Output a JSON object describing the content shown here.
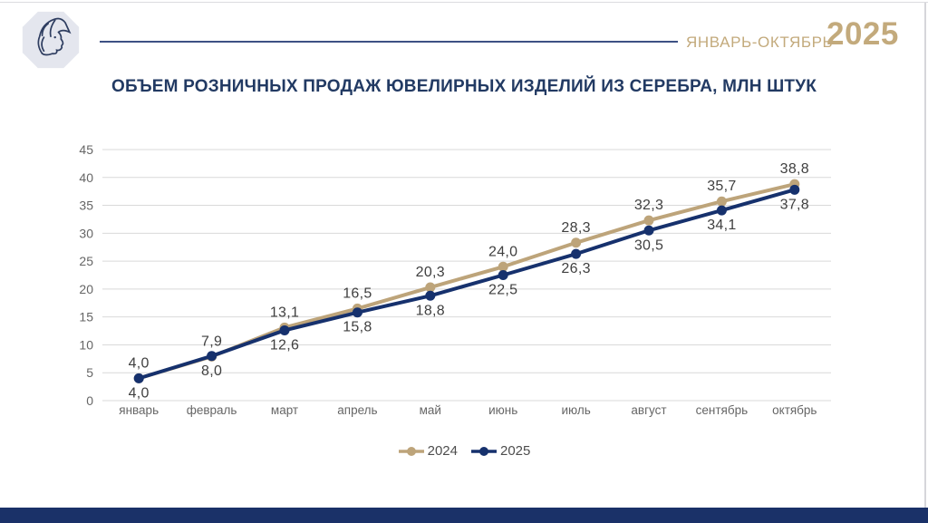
{
  "frame": {
    "top_border_color": "#dcdce0",
    "right_border_color": "#d6d6da"
  },
  "header": {
    "logo_name": "woman-profile-octagon-logo",
    "logo_bg_color": "#e4e6ee",
    "logo_line_color": "#2e3d60",
    "period_label": "ЯНВАРЬ-ОКТЯБРЬ",
    "year": "2025",
    "accent_color": "#c3aa7c",
    "rule_color": "#3d5184"
  },
  "chart_data": {
    "type": "line",
    "title": "ОБЪЕМ РОЗНИЧНЫХ ПРОДАЖ ЮВЕЛИРНЫХ ИЗДЕЛИЙ ИЗ СЕРЕБРА, МЛН ШТУК",
    "categories": [
      "январь",
      "февраль",
      "март",
      "апрель",
      "май",
      "июнь",
      "июль",
      "август",
      "сентябрь",
      "октябрь"
    ],
    "series": [
      {
        "name": "2024",
        "color": "#bda47a",
        "values": [
          4.0,
          7.9,
          13.1,
          16.5,
          20.3,
          24.0,
          28.3,
          32.3,
          35.7,
          38.8
        ],
        "point_labels": [
          "4,0",
          "7,9",
          "13,1",
          "16,5",
          "20,3",
          "24,0",
          "28,3",
          "32,3",
          "35,7",
          "38,8"
        ],
        "label_position": "above"
      },
      {
        "name": "2025",
        "color": "#16316d",
        "values": [
          4.0,
          8.0,
          12.6,
          15.8,
          18.8,
          22.5,
          26.3,
          30.5,
          34.1,
          37.8
        ],
        "point_labels": [
          "4,0",
          "8,0",
          "12,6",
          "15,8",
          "18,8",
          "22,5",
          "26,3",
          "30,5",
          "34,1",
          "37,8"
        ],
        "label_position": "below"
      }
    ],
    "xlabel": "",
    "ylabel": "",
    "ylim": [
      0,
      45
    ],
    "ytick_step": 5,
    "ytick_labels": [
      "0",
      "5",
      "10",
      "15",
      "20",
      "25",
      "30",
      "35",
      "40",
      "45"
    ],
    "grid": true,
    "legend_position": "bottom",
    "styles": {
      "grid_color": "#d9d9d9",
      "axis_text_color": "#666666",
      "point_label_color": "#3f3f3f",
      "title_color": "#223a63",
      "line_width": 4,
      "marker_radius": 5.5
    }
  },
  "footer": {
    "bar_color": "#1a3168"
  }
}
